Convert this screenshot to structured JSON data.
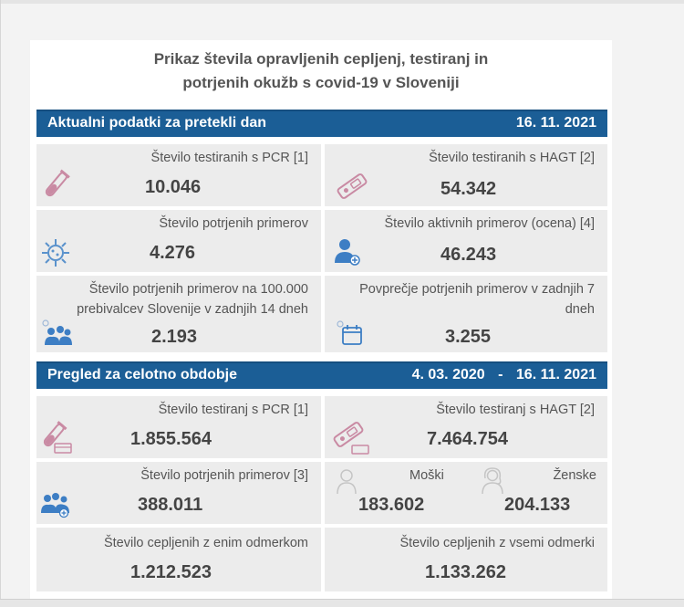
{
  "title_line1": "Prikaz števila opravljenih cepljenj, testiranj in",
  "title_line2": "potrjenih okužb s covid-19 v Sloveniji",
  "section_daily": {
    "label": "Aktualni podatki za pretekli dan",
    "date": "16. 11. 2021",
    "cards": {
      "pcr": {
        "label": "Število testiranih s PCR [1]",
        "value": "10.046"
      },
      "hagt": {
        "label": "Število testiranih s HAGT [2]",
        "value": "54.342"
      },
      "confirmed": {
        "label": "Število potrjenih primerov",
        "value": "4.276"
      },
      "active": {
        "label": "Število aktivnih primerov (ocena) [4]",
        "value": "46.243"
      },
      "per100k": {
        "line1": "Število potrjenih primerov na 100.000",
        "line2": "prebivalcev Slovenije v zadnjih 14 dneh",
        "value": "2.193"
      },
      "avg7": {
        "line1": "Povprečje potrjenih primerov v zadnjih 7",
        "line2": "dneh",
        "value": "3.255"
      }
    }
  },
  "section_total": {
    "label": "Pregled za celotno obdobje",
    "date_from": "4. 03. 2020",
    "dash": "-",
    "date_to": "16. 11. 2021",
    "cards": {
      "pcr": {
        "label": "Število testiranj s PCR [1]",
        "value": "1.855.564"
      },
      "hagt": {
        "label": "Število testiranj s HAGT [2]",
        "value": "7.464.754"
      },
      "confirmed": {
        "label": "Število potrjenih primerov [3]",
        "value": "388.011"
      },
      "male": {
        "label": "Moški",
        "value": "183.602"
      },
      "female": {
        "label": "Ženske",
        "value": "204.133"
      },
      "vacc_one": {
        "label": "Število cepljenih z enim odmerkom",
        "value": "1.212.523"
      },
      "vacc_all": {
        "label": "Število cepljenih z vsemi odmerki",
        "value": "1.133.262"
      }
    }
  },
  "colors": {
    "header_bar": "#1b5e96",
    "card_bg": "#ececec",
    "icon_blue": "#3d7ec4",
    "icon_pink": "#c98aa3"
  }
}
